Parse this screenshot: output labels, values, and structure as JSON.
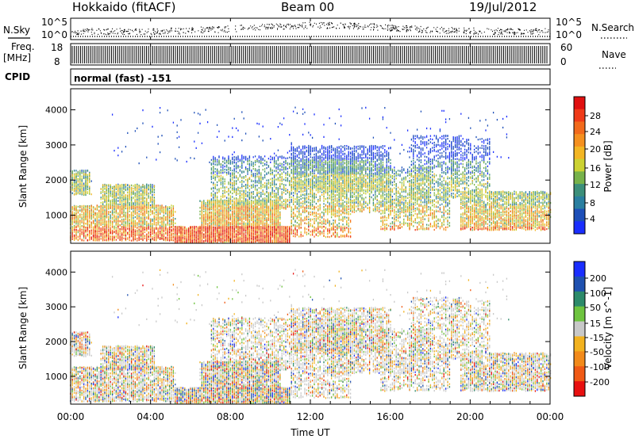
{
  "header": {
    "station": "Hokkaido (fitACF)",
    "beam": "Beam 00",
    "date": "19/Jul/2012"
  },
  "panels": {
    "nsky_label": "N.Sky",
    "nsky_ticks": [
      "10^5",
      "10^0"
    ],
    "nsearch_label": "N.Search",
    "nsearch_ticks": [
      "10^5",
      "10^0"
    ],
    "freq_label": "Freq.",
    "freq_unit": "[MHz]",
    "freq_ticks": [
      "18",
      "8"
    ],
    "nave_label": "Nave",
    "nave_ticks": [
      "60",
      "0"
    ],
    "cpid_label": "CPID",
    "cpid_text": "normal (fast) -151"
  },
  "chart_data": [
    {
      "type": "heatmap",
      "name": "power",
      "ylabel": "Slant Range [km]",
      "yticks": [
        1000,
        2000,
        3000,
        4000
      ],
      "ylim": [
        200,
        4600
      ],
      "xlim": [
        0,
        24
      ],
      "xticks": [
        "00:00",
        "04:00",
        "08:00",
        "12:00",
        "16:00",
        "20:00",
        "00:00"
      ],
      "colorbar": {
        "label": "Power [dB]",
        "ticks": [
          "4",
          "8",
          "12",
          "16",
          "20",
          "24",
          "28"
        ],
        "colors": [
          "#1a2eff",
          "#1d4fb8",
          "#2a7fa0",
          "#3c8f7a",
          "#77b24a",
          "#ccd232",
          "#f3b623",
          "#f5901f",
          "#f26a1c",
          "#f03a18",
          "#e01010"
        ]
      }
    },
    {
      "type": "heatmap",
      "name": "velocity",
      "ylabel": "Slant Range [km]",
      "yticks": [
        1000,
        2000,
        3000,
        4000
      ],
      "ylim": [
        200,
        4600
      ],
      "xlim": [
        0,
        24
      ],
      "xticks": [
        "00:00",
        "04:00",
        "08:00",
        "12:00",
        "16:00",
        "20:00",
        "00:00"
      ],
      "xlabel": "Time UT",
      "colorbar": {
        "label": "Velocity [m s^-1]",
        "ticks": [
          "200",
          "100",
          "50",
          "15",
          "-15",
          "-50",
          "-100",
          "-200"
        ],
        "colors": [
          "#1a2eff",
          "#1f51b0",
          "#2c8a6a",
          "#6ec43f",
          "#c8c8c8",
          "#f2b21f",
          "#f28a1a",
          "#f05a15",
          "#e81010"
        ]
      }
    }
  ]
}
